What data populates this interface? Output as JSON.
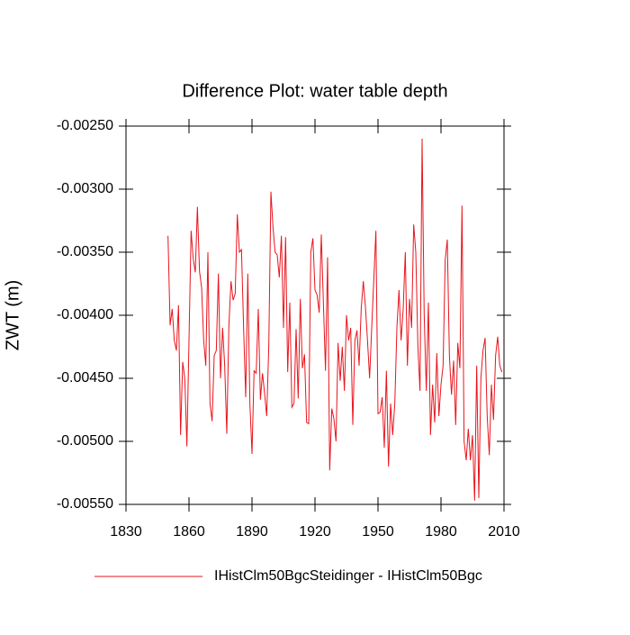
{
  "chart_data": {
    "type": "line",
    "title": "Difference Plot: water table depth",
    "y_label": "ZWT  (m)",
    "x": [
      1850,
      1851,
      1852,
      1853,
      1854,
      1855,
      1856,
      1857,
      1858,
      1859,
      1860,
      1861,
      1862,
      1863,
      1864,
      1865,
      1866,
      1867,
      1868,
      1869,
      1870,
      1871,
      1872,
      1873,
      1874,
      1875,
      1876,
      1877,
      1878,
      1879,
      1880,
      1881,
      1882,
      1883,
      1884,
      1885,
      1886,
      1887,
      1888,
      1889,
      1890,
      1891,
      1892,
      1893,
      1894,
      1895,
      1896,
      1897,
      1898,
      1899,
      1900,
      1901,
      1902,
      1903,
      1904,
      1905,
      1906,
      1907,
      1908,
      1909,
      1910,
      1911,
      1912,
      1913,
      1914,
      1915,
      1916,
      1917,
      1918,
      1919,
      1920,
      1921,
      1922,
      1923,
      1924,
      1925,
      1926,
      1927,
      1928,
      1929,
      1930,
      1931,
      1932,
      1933,
      1934,
      1935,
      1936,
      1937,
      1938,
      1939,
      1940,
      1941,
      1942,
      1943,
      1944,
      1945,
      1946,
      1947,
      1948,
      1949,
      1950,
      1951,
      1952,
      1953,
      1954,
      1955,
      1956,
      1957,
      1958,
      1959,
      1960,
      1961,
      1962,
      1963,
      1964,
      1965,
      1966,
      1967,
      1968,
      1969,
      1970,
      1971,
      1972,
      1973,
      1974,
      1975,
      1976,
      1977,
      1978,
      1979,
      1980,
      1981,
      1982,
      1983,
      1984,
      1985,
      1986,
      1987,
      1988,
      1989,
      1990,
      1991,
      1992,
      1993,
      1994,
      1995,
      1996,
      1997,
      1998,
      1999,
      2000,
      2001,
      2002,
      2003,
      2004,
      2005,
      2006,
      2007,
      2008,
      2009
    ],
    "series": [
      {
        "name": "IHistClm50BgcSteidinger - IHistClm50Bgc",
        "color": "#e8141c",
        "values": [
          -0.00337,
          -0.00408,
          -0.00395,
          -0.0042,
          -0.00428,
          -0.00392,
          -0.00495,
          -0.00437,
          -0.0045,
          -0.00504,
          -0.0042,
          -0.00333,
          -0.00355,
          -0.00366,
          -0.00314,
          -0.00365,
          -0.00378,
          -0.0042,
          -0.0044,
          -0.0035,
          -0.0047,
          -0.00484,
          -0.00432,
          -0.00428,
          -0.00367,
          -0.0045,
          -0.0041,
          -0.0044,
          -0.00494,
          -0.00408,
          -0.00373,
          -0.00388,
          -0.00383,
          -0.0032,
          -0.0035,
          -0.00348,
          -0.0041,
          -0.00465,
          -0.00367,
          -0.0047,
          -0.0051,
          -0.00444,
          -0.00446,
          -0.00395,
          -0.00467,
          -0.00446,
          -0.00462,
          -0.0048,
          -0.00424,
          -0.00302,
          -0.0033,
          -0.0035,
          -0.00352,
          -0.0037,
          -0.00337,
          -0.0041,
          -0.00338,
          -0.00445,
          -0.0039,
          -0.00473,
          -0.0047,
          -0.00411,
          -0.00466,
          -0.00387,
          -0.00442,
          -0.00431,
          -0.00485,
          -0.00486,
          -0.0035,
          -0.00339,
          -0.0038,
          -0.00384,
          -0.00398,
          -0.00336,
          -0.0039,
          -0.00444,
          -0.00354,
          -0.00523,
          -0.00474,
          -0.00482,
          -0.005,
          -0.00422,
          -0.00452,
          -0.00425,
          -0.0046,
          -0.004,
          -0.0042,
          -0.0041,
          -0.00487,
          -0.0042,
          -0.00412,
          -0.0044,
          -0.00395,
          -0.00373,
          -0.00393,
          -0.0042,
          -0.0045,
          -0.0041,
          -0.00372,
          -0.00333,
          -0.00478,
          -0.00477,
          -0.00465,
          -0.00505,
          -0.00444,
          -0.0052,
          -0.0047,
          -0.00495,
          -0.0047,
          -0.0041,
          -0.0038,
          -0.0042,
          -0.00395,
          -0.0035,
          -0.0044,
          -0.00387,
          -0.0041,
          -0.00328,
          -0.0035,
          -0.00425,
          -0.0046,
          -0.0026,
          -0.004,
          -0.0046,
          -0.0039,
          -0.00495,
          -0.00455,
          -0.00485,
          -0.0043,
          -0.0048,
          -0.00455,
          -0.0044,
          -0.00356,
          -0.0034,
          -0.00432,
          -0.00463,
          -0.00436,
          -0.00487,
          -0.00422,
          -0.00442,
          -0.00313,
          -0.005,
          -0.00515,
          -0.0049,
          -0.00515,
          -0.00495,
          -0.00547,
          -0.0044,
          -0.00545,
          -0.0045,
          -0.00428,
          -0.00418,
          -0.0048,
          -0.00511,
          -0.00455,
          -0.00483,
          -0.00432,
          -0.00417,
          -0.0044,
          -0.00445
        ]
      }
    ],
    "xlim": [
      1830,
      2010
    ],
    "xticks": [
      1830,
      1860,
      1890,
      1920,
      1950,
      1980,
      2010
    ],
    "ylim": [
      -0.0055,
      -0.0025
    ],
    "yticks": [
      {
        "value": -0.0055,
        "label": "-0.00550"
      },
      {
        "value": -0.005,
        "label": "-0.00500"
      },
      {
        "value": -0.0045,
        "label": "-0.00450"
      },
      {
        "value": -0.004,
        "label": "-0.00400"
      },
      {
        "value": -0.0035,
        "label": "-0.00350"
      },
      {
        "value": -0.003,
        "label": "-0.00300"
      },
      {
        "value": -0.0025,
        "label": "-0.00250"
      }
    ]
  }
}
